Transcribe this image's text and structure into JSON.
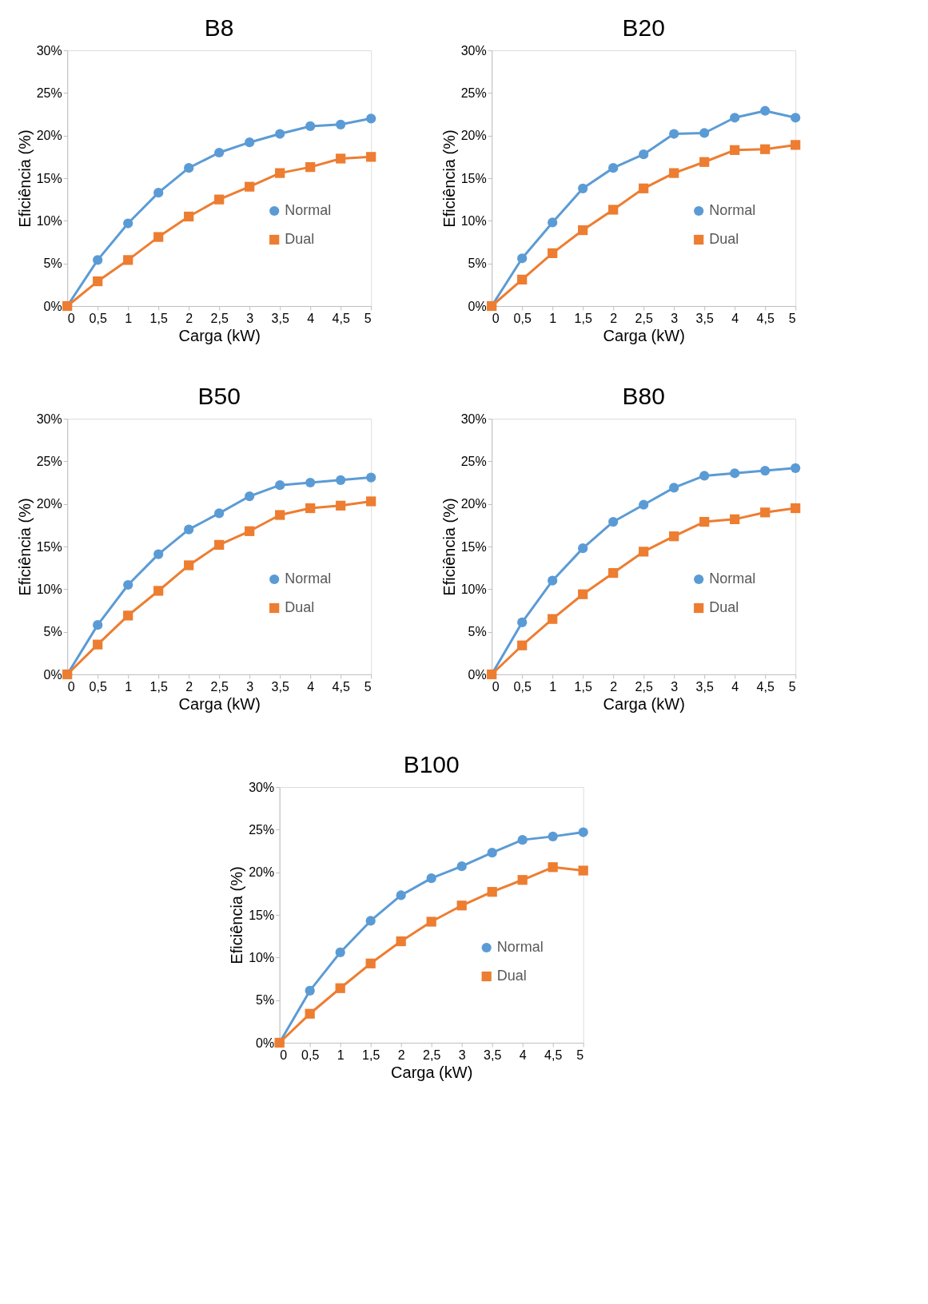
{
  "chart_data": [
    {
      "type": "line",
      "title": "B8",
      "xlabel": "Carga (kW)",
      "ylabel": "Eficiência (%)",
      "x": [
        0,
        0.5,
        1,
        1.5,
        2,
        2.5,
        3,
        3.5,
        4,
        4.5,
        5
      ],
      "xlim": [
        0,
        5
      ],
      "xticks": [
        0,
        {
          "value": 0.5,
          "label": "0,5"
        },
        1,
        {
          "value": 1.5,
          "label": "1,5"
        },
        2,
        {
          "value": 2.5,
          "label": "2,5"
        },
        3,
        {
          "value": 3.5,
          "label": "3,5"
        },
        4,
        {
          "value": 4.5,
          "label": "4,5"
        },
        5
      ],
      "ylim": [
        0,
        30
      ],
      "yticks": [
        {
          "value": 0,
          "label": "0%"
        },
        {
          "value": 5,
          "label": "5%"
        },
        {
          "value": 10,
          "label": "10%"
        },
        {
          "value": 15,
          "label": "15%"
        },
        {
          "value": 20,
          "label": "20%"
        },
        {
          "value": 25,
          "label": "25%"
        },
        {
          "value": 30,
          "label": "30%"
        }
      ],
      "grid": false,
      "legend": "right",
      "line_style": "solid",
      "series": [
        {
          "name": "Normal",
          "color": "#5b9bd5",
          "marker": "circle",
          "values": [
            0,
            5.4,
            9.7,
            13.3,
            16.2,
            18.0,
            19.2,
            20.2,
            21.1,
            21.3,
            22.0
          ]
        },
        {
          "name": "Dual",
          "color": "#ed7d31",
          "marker": "square",
          "values": [
            0,
            2.9,
            5.4,
            8.1,
            10.5,
            12.5,
            14.0,
            15.6,
            16.3,
            17.3,
            17.5
          ]
        }
      ]
    },
    {
      "type": "line",
      "title": "B20",
      "xlabel": "Carga (kW)",
      "ylabel": "Eficiência (%)",
      "x": [
        0,
        0.5,
        1,
        1.5,
        2,
        2.5,
        3,
        3.5,
        4,
        4.5,
        5
      ],
      "xlim": [
        0,
        5
      ],
      "xticks": [
        0,
        {
          "value": 0.5,
          "label": "0,5"
        },
        1,
        {
          "value": 1.5,
          "label": "1,5"
        },
        2,
        {
          "value": 2.5,
          "label": "2,5"
        },
        3,
        {
          "value": 3.5,
          "label": "3,5"
        },
        4,
        {
          "value": 4.5,
          "label": "4,5"
        },
        5
      ],
      "ylim": [
        0,
        30
      ],
      "yticks": [
        {
          "value": 0,
          "label": "0%"
        },
        {
          "value": 5,
          "label": "5%"
        },
        {
          "value": 10,
          "label": "10%"
        },
        {
          "value": 15,
          "label": "15%"
        },
        {
          "value": 20,
          "label": "20%"
        },
        {
          "value": 25,
          "label": "25%"
        },
        {
          "value": 30,
          "label": "30%"
        }
      ],
      "grid": false,
      "legend": "right",
      "line_style": "solid",
      "series": [
        {
          "name": "Normal",
          "color": "#5b9bd5",
          "marker": "circle",
          "values": [
            0,
            5.6,
            9.8,
            13.8,
            16.2,
            17.8,
            20.2,
            20.3,
            22.1,
            22.9,
            22.1
          ]
        },
        {
          "name": "Dual",
          "color": "#ed7d31",
          "marker": "square",
          "values": [
            0,
            3.1,
            6.2,
            8.9,
            11.3,
            13.8,
            15.6,
            16.9,
            18.3,
            18.4,
            18.9
          ]
        }
      ]
    },
    {
      "type": "line",
      "title": "B50",
      "xlabel": "Carga (kW)",
      "ylabel": "Eficiência (%)",
      "x": [
        0,
        0.5,
        1,
        1.5,
        2,
        2.5,
        3,
        3.5,
        4,
        4.5,
        5
      ],
      "xlim": [
        0,
        5
      ],
      "xticks": [
        0,
        {
          "value": 0.5,
          "label": "0,5"
        },
        1,
        {
          "value": 1.5,
          "label": "1,5"
        },
        2,
        {
          "value": 2.5,
          "label": "2,5"
        },
        3,
        {
          "value": 3.5,
          "label": "3,5"
        },
        4,
        {
          "value": 4.5,
          "label": "4,5"
        },
        5
      ],
      "ylim": [
        0,
        30
      ],
      "yticks": [
        {
          "value": 0,
          "label": "0%"
        },
        {
          "value": 5,
          "label": "5%"
        },
        {
          "value": 10,
          "label": "10%"
        },
        {
          "value": 15,
          "label": "15%"
        },
        {
          "value": 20,
          "label": "20%"
        },
        {
          "value": 25,
          "label": "25%"
        },
        {
          "value": 30,
          "label": "30%"
        }
      ],
      "grid": false,
      "legend": "right",
      "line_style": "solid",
      "series": [
        {
          "name": "Normal",
          "color": "#5b9bd5",
          "marker": "circle",
          "values": [
            0,
            5.8,
            10.5,
            14.1,
            17.0,
            18.9,
            20.9,
            22.2,
            22.5,
            22.8,
            23.1
          ]
        },
        {
          "name": "Dual",
          "color": "#ed7d31",
          "marker": "square",
          "values": [
            0,
            3.5,
            6.9,
            9.8,
            12.8,
            15.2,
            16.8,
            18.7,
            19.5,
            19.8,
            20.3
          ]
        }
      ]
    },
    {
      "type": "line",
      "title": "B80",
      "xlabel": "Carga (kW)",
      "ylabel": "Eficiência (%)",
      "x": [
        0,
        0.5,
        1,
        1.5,
        2,
        2.5,
        3,
        3.5,
        4,
        4.5,
        5
      ],
      "xlim": [
        0,
        5
      ],
      "xticks": [
        0,
        {
          "value": 0.5,
          "label": "0,5"
        },
        1,
        {
          "value": 1.5,
          "label": "1,5"
        },
        2,
        {
          "value": 2.5,
          "label": "2,5"
        },
        3,
        {
          "value": 3.5,
          "label": "3,5"
        },
        4,
        {
          "value": 4.5,
          "label": "4,5"
        },
        5
      ],
      "ylim": [
        0,
        30
      ],
      "yticks": [
        {
          "value": 0,
          "label": "0%"
        },
        {
          "value": 5,
          "label": "5%"
        },
        {
          "value": 10,
          "label": "10%"
        },
        {
          "value": 15,
          "label": "15%"
        },
        {
          "value": 20,
          "label": "20%"
        },
        {
          "value": 25,
          "label": "25%"
        },
        {
          "value": 30,
          "label": "30%"
        }
      ],
      "grid": false,
      "legend": "right",
      "line_style": "solid",
      "series": [
        {
          "name": "Normal",
          "color": "#5b9bd5",
          "marker": "circle",
          "values": [
            0,
            6.1,
            11.0,
            14.8,
            17.9,
            19.9,
            21.9,
            23.3,
            23.6,
            23.9,
            24.2
          ]
        },
        {
          "name": "Dual",
          "color": "#ed7d31",
          "marker": "square",
          "values": [
            0,
            3.4,
            6.5,
            9.4,
            11.9,
            14.4,
            16.2,
            17.9,
            18.2,
            19.0,
            19.5
          ]
        }
      ]
    },
    {
      "type": "line",
      "title": "B100",
      "xlabel": "Carga (kW)",
      "ylabel": "Eficiência (%)",
      "x": [
        0,
        0.5,
        1,
        1.5,
        2,
        2.5,
        3,
        3.5,
        4,
        4.5,
        5
      ],
      "xlim": [
        0,
        5
      ],
      "xticks": [
        0,
        {
          "value": 0.5,
          "label": "0,5"
        },
        1,
        {
          "value": 1.5,
          "label": "1,5"
        },
        2,
        {
          "value": 2.5,
          "label": "2,5"
        },
        3,
        {
          "value": 3.5,
          "label": "3,5"
        },
        4,
        {
          "value": 4.5,
          "label": "4,5"
        },
        5
      ],
      "ylim": [
        0,
        30
      ],
      "yticks": [
        {
          "value": 0,
          "label": "0%"
        },
        {
          "value": 5,
          "label": "5%"
        },
        {
          "value": 10,
          "label": "10%"
        },
        {
          "value": 15,
          "label": "15%"
        },
        {
          "value": 20,
          "label": "20%"
        },
        {
          "value": 25,
          "label": "25%"
        },
        {
          "value": 30,
          "label": "30%"
        }
      ],
      "grid": false,
      "legend": "right",
      "line_style": "solid",
      "series": [
        {
          "name": "Normal",
          "color": "#5b9bd5",
          "marker": "circle",
          "values": [
            0,
            6.1,
            10.6,
            14.3,
            17.3,
            19.3,
            20.7,
            22.3,
            23.8,
            24.2,
            24.7
          ]
        },
        {
          "name": "Dual",
          "color": "#ed7d31",
          "marker": "square",
          "values": [
            0,
            3.4,
            6.4,
            9.3,
            11.9,
            14.2,
            16.1,
            17.7,
            19.1,
            20.6,
            20.2
          ]
        }
      ]
    }
  ]
}
